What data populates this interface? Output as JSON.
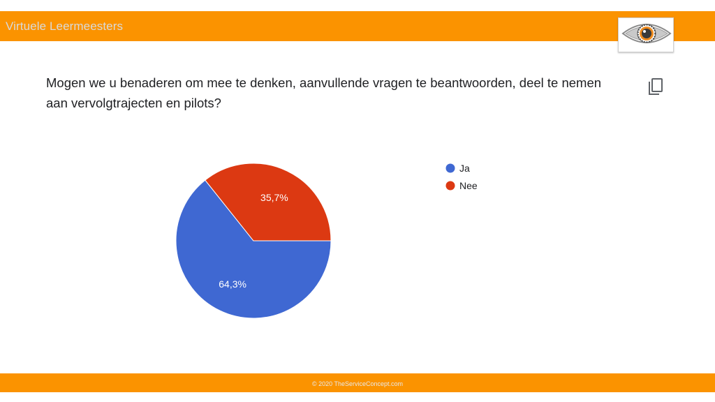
{
  "header": {
    "brand": "Virtuele Leermeesters",
    "logo_icon": "eye-icon",
    "bar_color": "#fb9300"
  },
  "question": {
    "text": "Mogen we u benaderen om mee te denken, aanvullende vragen te beantwoorden, deel te nemen aan vervolgtrajecten en pilots?",
    "copy_icon": "copy-icon"
  },
  "chart_data": {
    "type": "pie",
    "title": "",
    "legend_position": "right",
    "slices": [
      {
        "label": "Ja",
        "value": 64.3,
        "display": "64,3%",
        "color": "#3f68d2"
      },
      {
        "label": "Nee",
        "value": 35.7,
        "display": "35,7%",
        "color": "#dc3912"
      }
    ]
  },
  "footer": {
    "text": "© 2020  TheServiceConcept.com"
  }
}
